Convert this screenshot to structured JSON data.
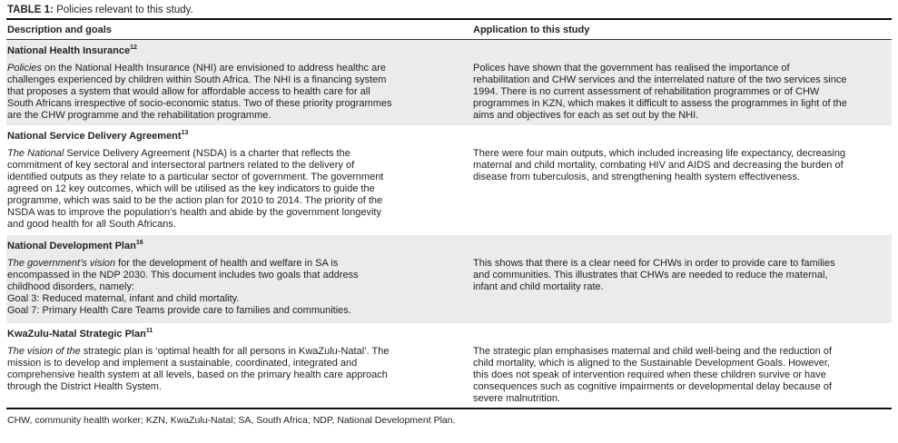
{
  "table": {
    "label": "TABLE 1:",
    "caption": " Policies relevant to this study.",
    "headers": [
      "Description and goals",
      "Application to this study"
    ],
    "sections": [
      {
        "heading": "National Health Insurance",
        "ref": "12",
        "italic_lead": "Policies",
        "description_lines": [
          " on the National Health Insurance (NHI) are envisioned to address healthc are",
          "challenges experienced by children within South Africa. The NHI is a financing system",
          "that proposes a system that would allow for affordable access to health care for all",
          "South Africans irrespective of socio-economic status. Two of these priority programmes",
          "are the CHW programme and the rehabilitation programme."
        ],
        "application_lines": [
          "Polices have shown that the government has realised the importance of",
          "rehabilitation and CHW services and the interrelated nature of the two services since",
          "1994. There is no current assessment of rehabilitation programmes or of CHW",
          "programmes in KZN, which makes it difficult to assess the programmes in light of the",
          "aims and objectives for each as set out by the NHI."
        ]
      },
      {
        "heading": "National Service Delivery Agreement",
        "ref": "13",
        "italic_lead": "The National",
        "description_lines": [
          " Service Delivery Agreement (NSDA) is a charter that reflects the",
          "commitment of key sectoral and intersectoral partners related to the delivery of",
          "identified outputs as they relate to a particular sector of government. The government",
          "agreed on 12 key outcomes, which will be utilised as the key indicators to guide the",
          "programme, which was said to be the action plan for 2010 to 2014. The priority of the",
          "NSDA was to improve the population’s health and abide by the government longevity",
          "and good health for all South Africans."
        ],
        "application_lines": [
          "There were four main outputs, which included increasing life expectancy, decreasing",
          "maternal and child mortality, combating HIV and AIDS and decreasing the burden of",
          "disease from tuberculosis, and strengthening health system effectiveness."
        ]
      },
      {
        "heading": "National Development Plan",
        "ref": "16",
        "italic_lead": "The government’s vision",
        "description_lines": [
          " for the development of health and welfare in SA is",
          "encompassed in the NDP 2030. This document includes two goals that address",
          "childhood disorders, namely:",
          "Goal 3: Reduced maternal, infant and child mortality.",
          "Goal 7: Primary Health Care Teams provide care to families and communities."
        ],
        "application_lines": [
          "This shows that there is a clear need for CHWs in order to provide care to families",
          "and communities. This illustrates that CHWs are needed to reduce the maternal,",
          "infant and child mortality rate."
        ]
      },
      {
        "heading": "KwaZulu-Natal Strategic Plan",
        "ref": "11",
        "italic_lead": "The vision of the",
        "description_lines": [
          " strategic plan is ‘optimal health for all persons in KwaZulu-Natal’. The",
          "mission is to develop and implement a sustainable, coordinated, integrated and",
          "comprehensive health system at all levels, based on the primary health care approach",
          "through the District Health System."
        ],
        "application_lines": [
          "The strategic plan emphasises maternal and child well-being and the reduction of",
          "child mortality, which is aligned to the Sustainable Development Goals. However,",
          "this does not speak of intervention required when these children survive or have",
          "consequences such as cognitive impairments or developmental delay because of",
          "severe malnutrition."
        ]
      }
    ],
    "footnote": "CHW, community health worker; KZN, KwaZulu-Natal; SA, South Africa; NDP, National Development Plan.",
    "colors": {
      "shade": "#ebebeb",
      "rule": "#111111"
    }
  }
}
